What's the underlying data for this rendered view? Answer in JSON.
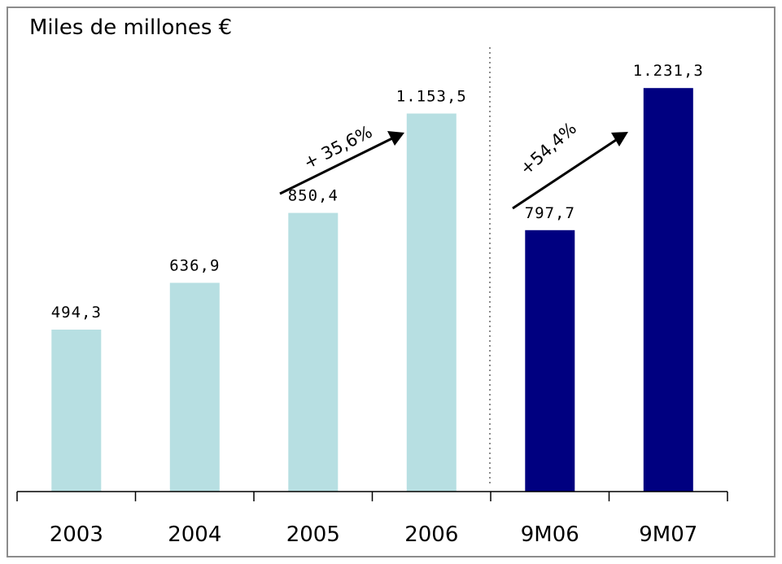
{
  "chart_data": {
    "type": "bar",
    "unit_label": "Miles de millones €",
    "categories": [
      "2003",
      "2004",
      "2005",
      "2006",
      "9M06",
      "9M07"
    ],
    "values": [
      494.3,
      636.9,
      850.4,
      1153.5,
      797.7,
      1231.3
    ],
    "value_labels": [
      "494,3",
      "636,9",
      "850,4",
      "1.153,5",
      "797,7",
      "1.231,3"
    ],
    "colors": [
      "#b7dfe2",
      "#b7dfe2",
      "#b7dfe2",
      "#b7dfe2",
      "#000080",
      "#000080"
    ],
    "ylim": [
      0,
      1500
    ],
    "grid": false,
    "separator": "dotted line between 2006 and 9M06",
    "growth_annotations": [
      {
        "label": "+ 35,6%",
        "from": "2005",
        "to": "2006"
      },
      {
        "label": "+54,4%",
        "from": "9M06",
        "to": "9M07"
      }
    ]
  }
}
